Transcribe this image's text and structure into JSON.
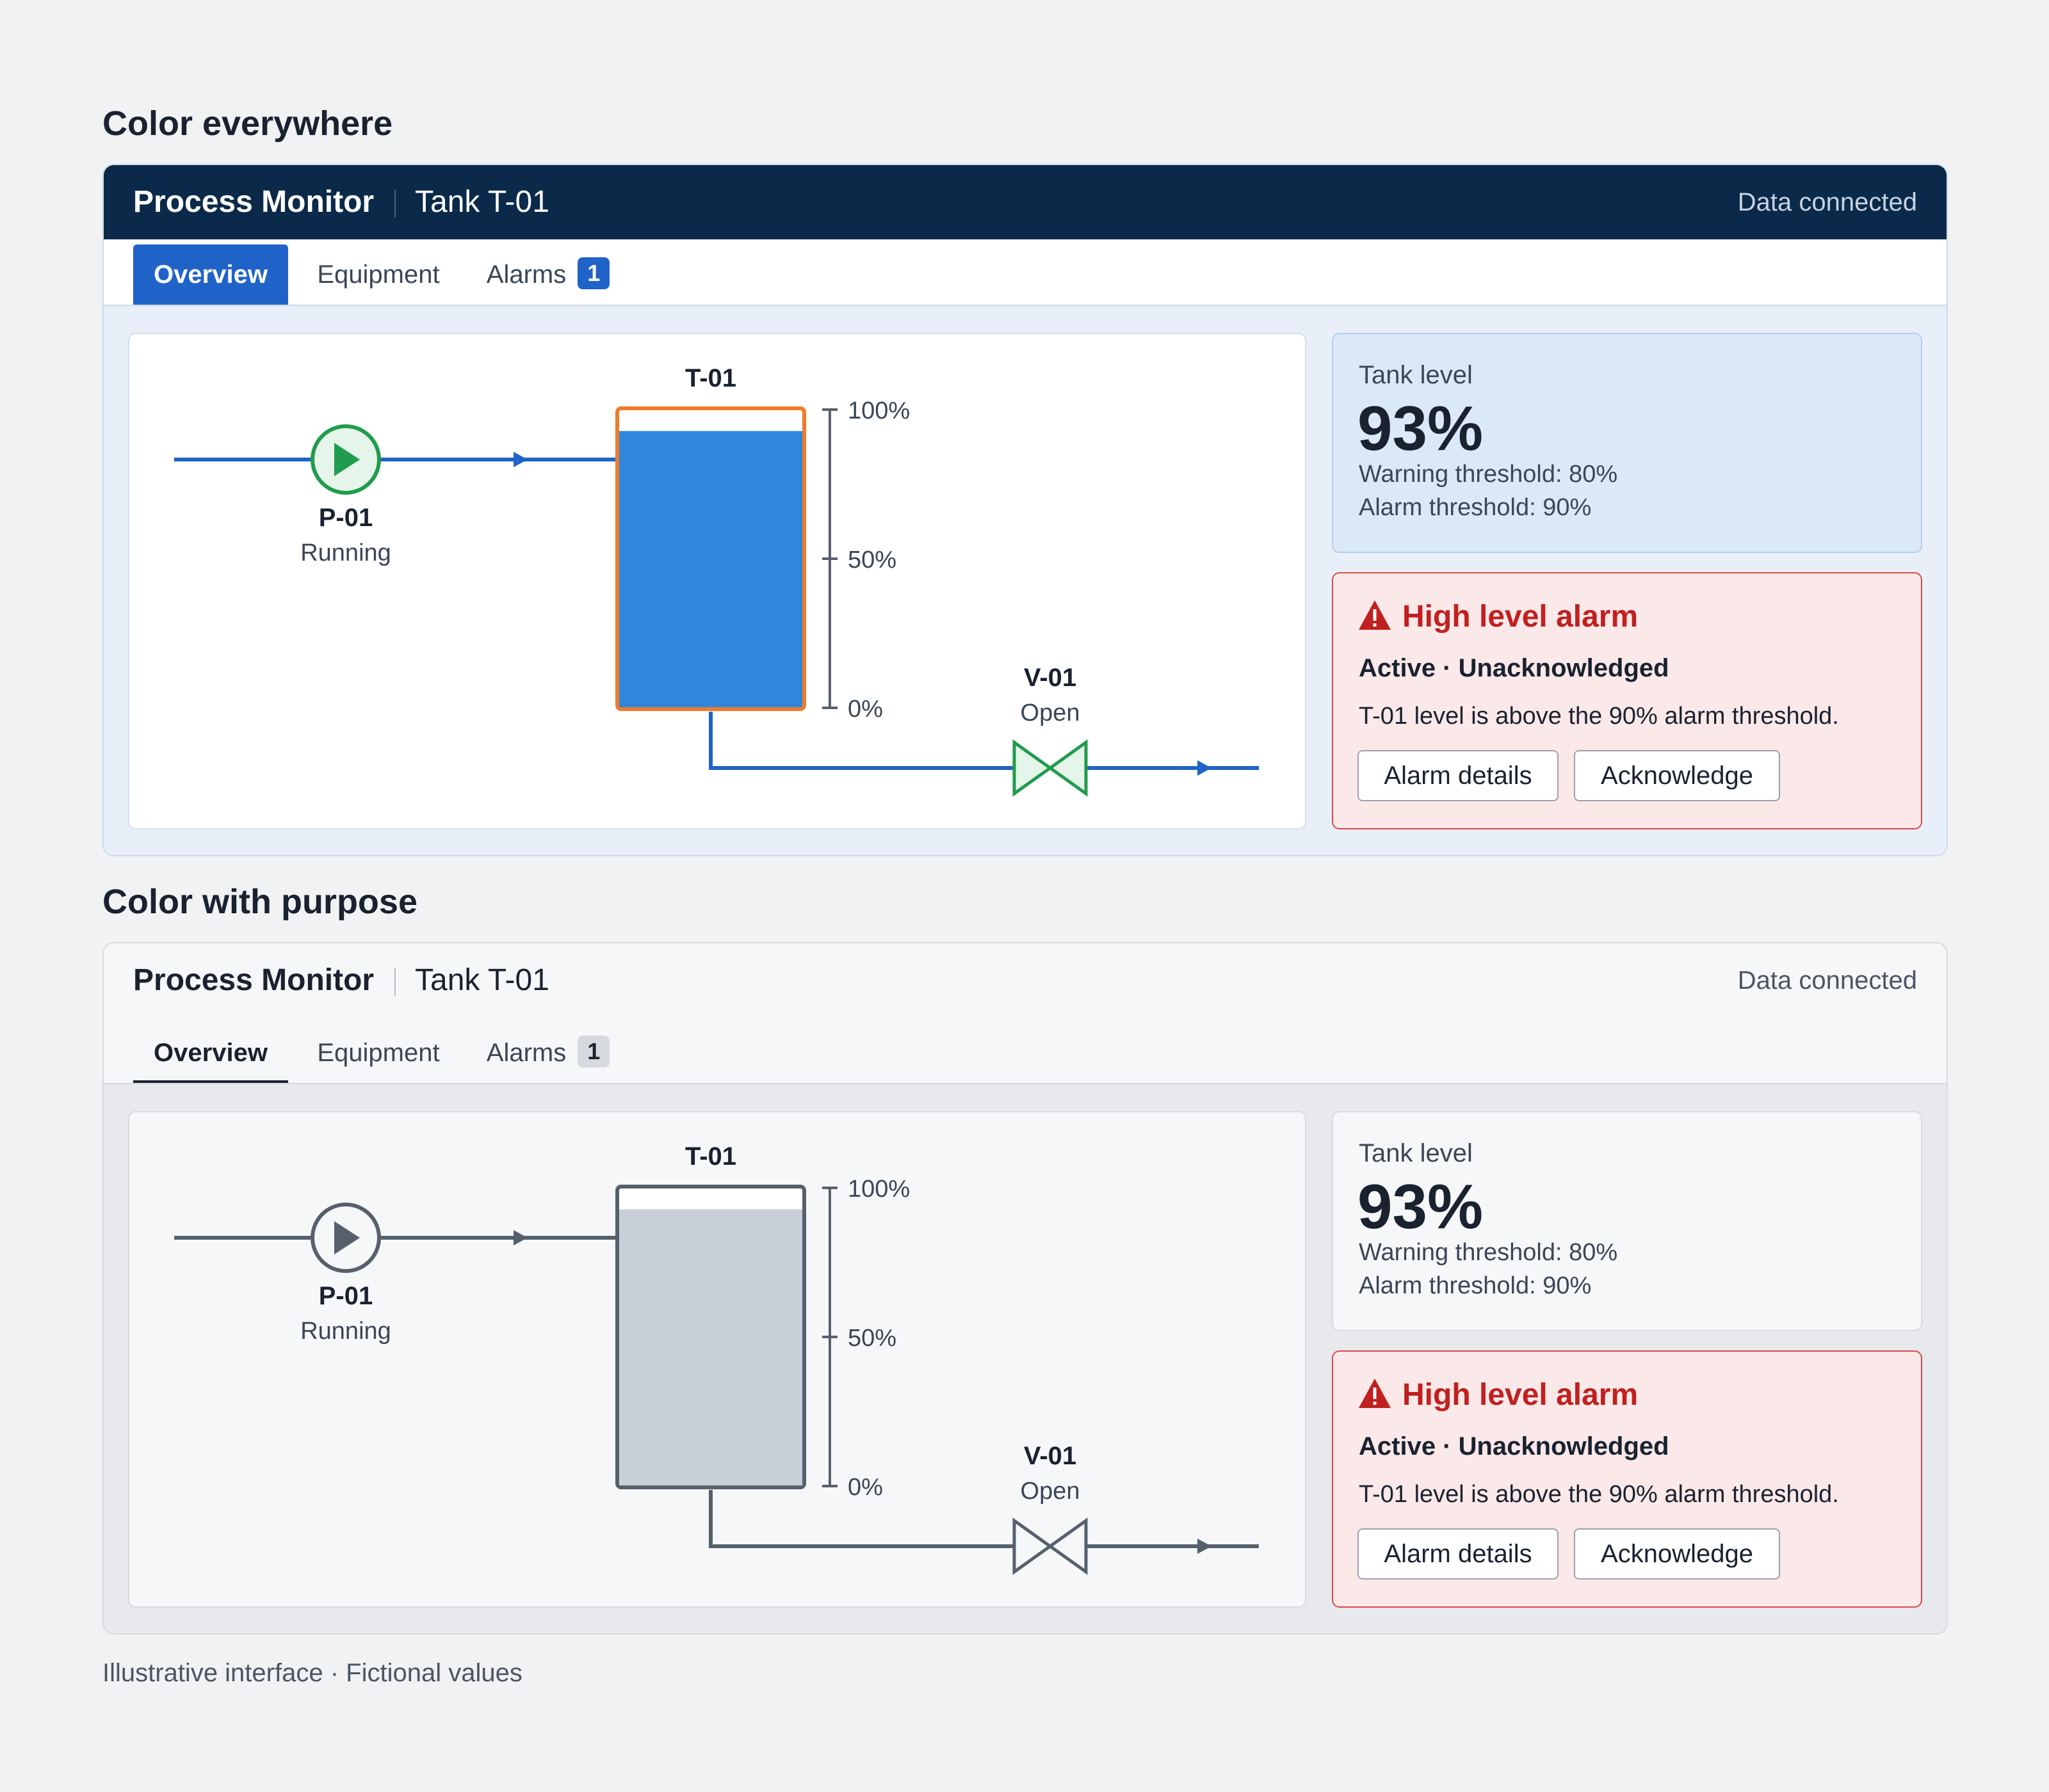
{
  "sections": [
    {
      "title": "Color everywhere",
      "header": {
        "title": "Process Monitor",
        "subtitle": "Tank T-01",
        "connection": "Data connected"
      },
      "tabs": [
        {
          "label": "Overview"
        },
        {
          "label": "Equipment"
        },
        {
          "label": "Alarms",
          "badge": "1"
        }
      ],
      "diagram": {
        "pump": {
          "id": "P-01",
          "status": "Running"
        },
        "tank": {
          "id": "T-01",
          "fill_fraction": 0.93,
          "scale": [
            "100%",
            "50%",
            "0%"
          ]
        },
        "valve": {
          "id": "V-01",
          "status": "Open"
        }
      },
      "level": {
        "label": "Tank level",
        "value": "93%",
        "warning": "Warning threshold: 80%",
        "alarm": "Alarm threshold: 90%"
      },
      "alarm": {
        "title": "High level alarm",
        "status": "Active · Unacknowledged",
        "description": "T-01 level is above the 90% alarm threshold.",
        "details_button": "Alarm details",
        "ack_button": "Acknowledge"
      },
      "colors": {
        "pipe": "#1f63c8",
        "tank_fill": "#2f86dd",
        "tank_border": "#ef7b2c",
        "pump": "#1f9c4c",
        "valve": "#1f9c4c",
        "alarm": "#c0201f"
      }
    },
    {
      "title": "Color with purpose",
      "header": {
        "title": "Process Monitor",
        "subtitle": "Tank T-01",
        "connection": "Data connected"
      },
      "tabs": [
        {
          "label": "Overview"
        },
        {
          "label": "Equipment"
        },
        {
          "label": "Alarms",
          "badge": "1"
        }
      ],
      "diagram": {
        "pump": {
          "id": "P-01",
          "status": "Running"
        },
        "tank": {
          "id": "T-01",
          "fill_fraction": 0.93,
          "scale": [
            "100%",
            "50%",
            "0%"
          ]
        },
        "valve": {
          "id": "V-01",
          "status": "Open"
        }
      },
      "level": {
        "label": "Tank level",
        "value": "93%",
        "warning": "Warning threshold: 80%",
        "alarm": "Alarm threshold: 90%"
      },
      "alarm": {
        "title": "High level alarm",
        "status": "Active · Unacknowledged",
        "description": "T-01 level is above the 90% alarm threshold.",
        "details_button": "Alarm details",
        "ack_button": "Acknowledge"
      },
      "colors": {
        "pipe": "#56606d",
        "tank_fill": "#c8cfd8",
        "tank_border": "#56606d",
        "pump": "#56606d",
        "valve": "#56606d",
        "alarm": "#c0201f"
      }
    }
  ],
  "footer": "Illustrative interface · Fictional values"
}
